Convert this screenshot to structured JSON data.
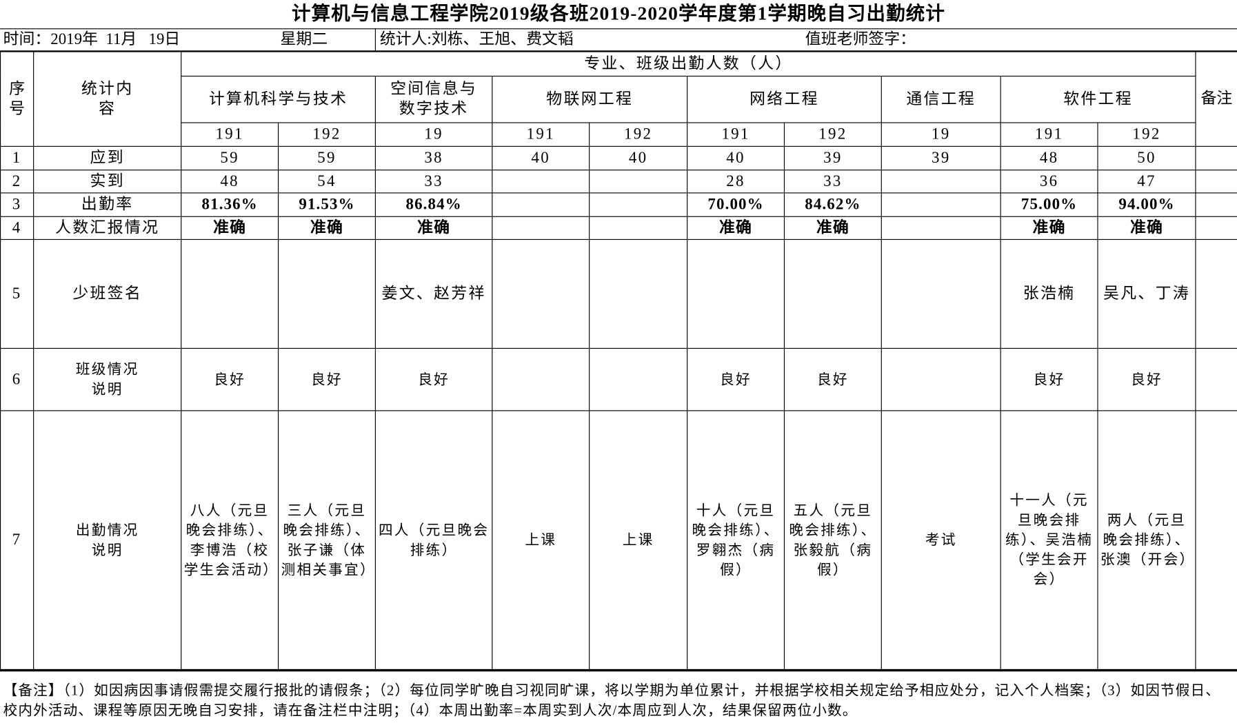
{
  "title": "计算机与信息工程学院2019级各班2019-2020学年度第1学期晚自习出勤统计",
  "info": {
    "date": "时间：2019年  11月   19日",
    "weekday": "星期二",
    "statistician": "统计人:刘栋、王旭、费文韬",
    "teacher_sign": "值班老师签字："
  },
  "header": {
    "index": "序号",
    "content": "统计内容",
    "group": "专业、班级出勤人数（人）",
    "remark": "备注",
    "majors": [
      {
        "name": "计算机科学与技术",
        "span": 2
      },
      {
        "name": "空间信息与数字技术",
        "span": 1
      },
      {
        "name": "物联网工程",
        "span": 2
      },
      {
        "name": "网络工程",
        "span": 2
      },
      {
        "name": "通信工程",
        "span": 1
      },
      {
        "name": "软件工程",
        "span": 2
      }
    ],
    "classes": [
      "191",
      "192",
      "19",
      "191",
      "192",
      "191",
      "192",
      "19",
      "191",
      "192"
    ]
  },
  "rows": [
    {
      "no": "1",
      "label": "应到",
      "cells": [
        "59",
        "59",
        "38",
        "40",
        "40",
        "40",
        "39",
        "39",
        "48",
        "50"
      ]
    },
    {
      "no": "2",
      "label": "实到",
      "cells": [
        "48",
        "54",
        "33",
        "",
        "",
        "28",
        "33",
        "",
        "36",
        "47"
      ]
    },
    {
      "no": "3",
      "label": "出勤率",
      "cells": [
        "81.36%",
        "91.53%",
        "86.84%",
        "",
        "",
        "70.00%",
        "84.62%",
        "",
        "75.00%",
        "94.00%"
      ]
    },
    {
      "no": "4",
      "label": "人数汇报情况",
      "cells": [
        "准确",
        "准确",
        "准确",
        "",
        "",
        "准确",
        "准确",
        "",
        "准确",
        "准确"
      ]
    },
    {
      "no": "5",
      "label": "少班签名",
      "cells": [
        "",
        "",
        "姜文、赵芳祥",
        "",
        "",
        "",
        "",
        "",
        "张浩楠",
        "吴凡、丁涛"
      ]
    },
    {
      "no": "6",
      "label": "班级情况说明",
      "cells": [
        "良好",
        "良好",
        "良好",
        "",
        "",
        "良好",
        "良好",
        "",
        "良好",
        "良好"
      ]
    },
    {
      "no": "7",
      "label": "出勤情况说明",
      "cells": [
        "八人（元旦晚会排练）、李博浩（校学生会活动）",
        "三人（元旦晚会排练）、张子谦（体测相关事宜）",
        "四人（元旦晚会排练）",
        "上课",
        "上课",
        "十人（元旦晚会排练）、罗翱杰（病假）",
        "五人（元旦晚会排练）、张毅航（病假）",
        "考试",
        "十一人（元旦晚会排练）、吴浩楠（学生会开会）",
        "两人（元旦晚会排练）、张澳（开会）"
      ]
    }
  ],
  "note": "【备注】（1）如因病因事请假需提交履行报批的请假条；（2）每位同学旷晚自习视同旷课，将以学期为单位累计，并根据学校相关规定给予相应处分，记入个人档案；（3）如因节假日、校内外活动、课程等原因无晚自习安排，请在备注栏中注明；（4）本周出勤率=本周实到人次/本周应到人次，结果保留两位小数。"
}
